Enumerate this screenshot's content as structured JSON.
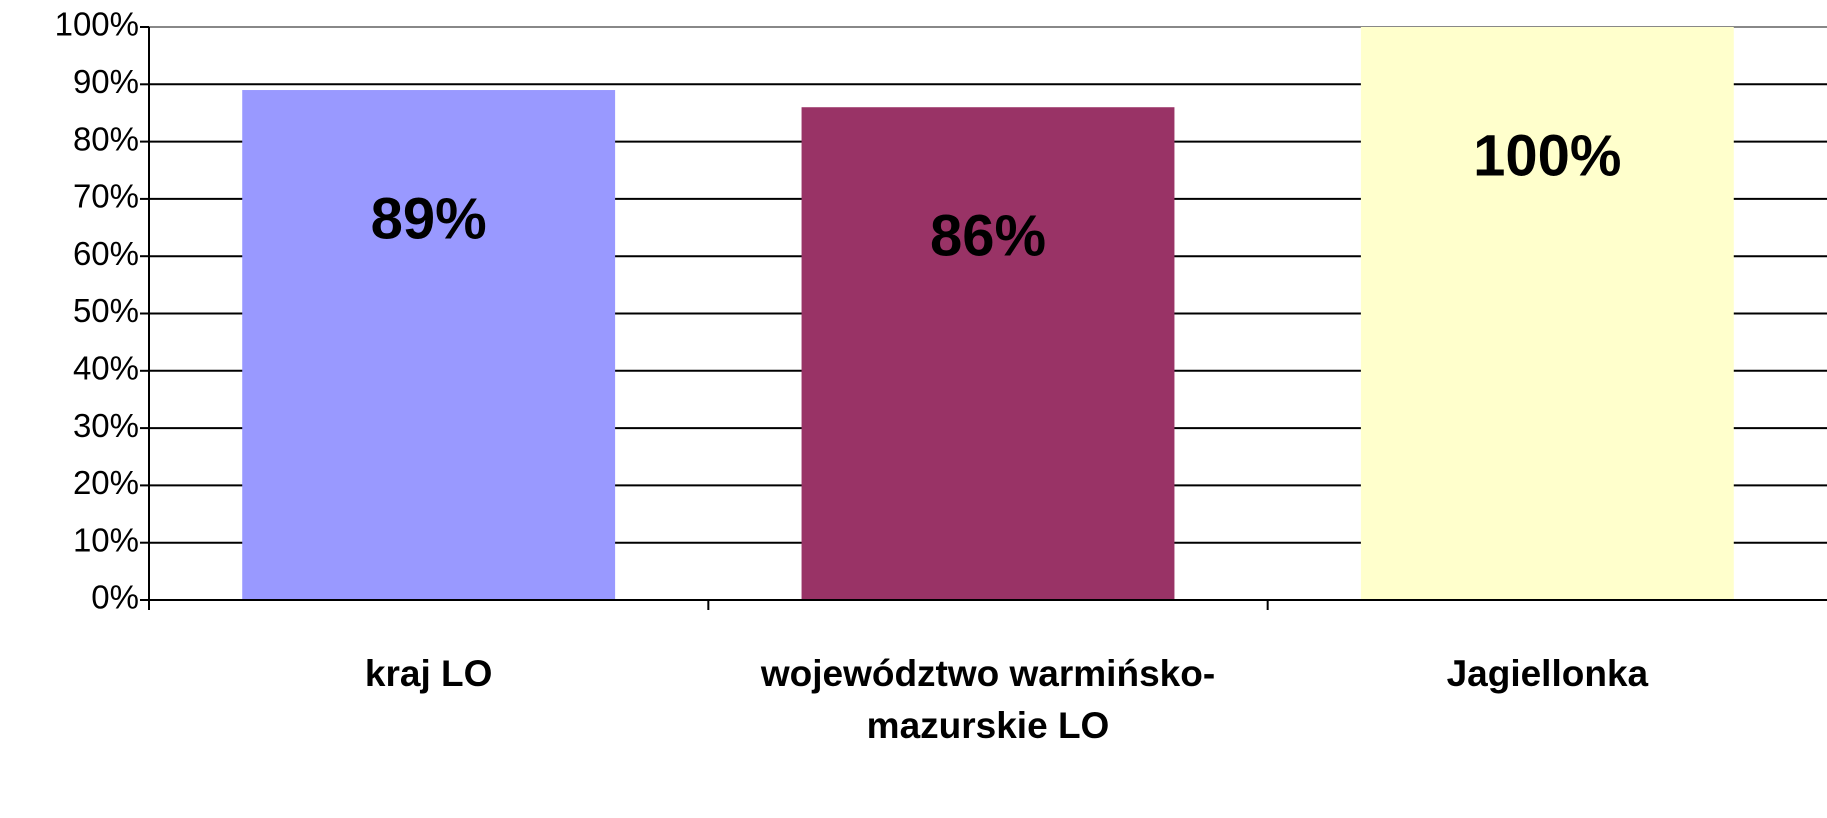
{
  "chart_data": {
    "type": "bar",
    "categories": [
      "kraj LO",
      "województwo warmińsko-mazurskie LO",
      "Jagiellonka"
    ],
    "values": [
      89,
      86,
      100
    ],
    "value_labels": [
      "89%",
      "86%",
      "100%"
    ],
    "colors": [
      "#9999ff",
      "#993366",
      "#ffffcc"
    ],
    "ylim": [
      0,
      100
    ],
    "yticks": [
      {
        "value": 0,
        "label": "0%"
      },
      {
        "value": 10,
        "label": "10%"
      },
      {
        "value": 20,
        "label": "20%"
      },
      {
        "value": 30,
        "label": "30%"
      },
      {
        "value": 40,
        "label": "40%"
      },
      {
        "value": 50,
        "label": "50%"
      },
      {
        "value": 60,
        "label": "60%"
      },
      {
        "value": 70,
        "label": "70%"
      },
      {
        "value": 80,
        "label": "80%"
      },
      {
        "value": 90,
        "label": "90%"
      },
      {
        "value": 100,
        "label": "100%"
      }
    ],
    "grid": true
  }
}
